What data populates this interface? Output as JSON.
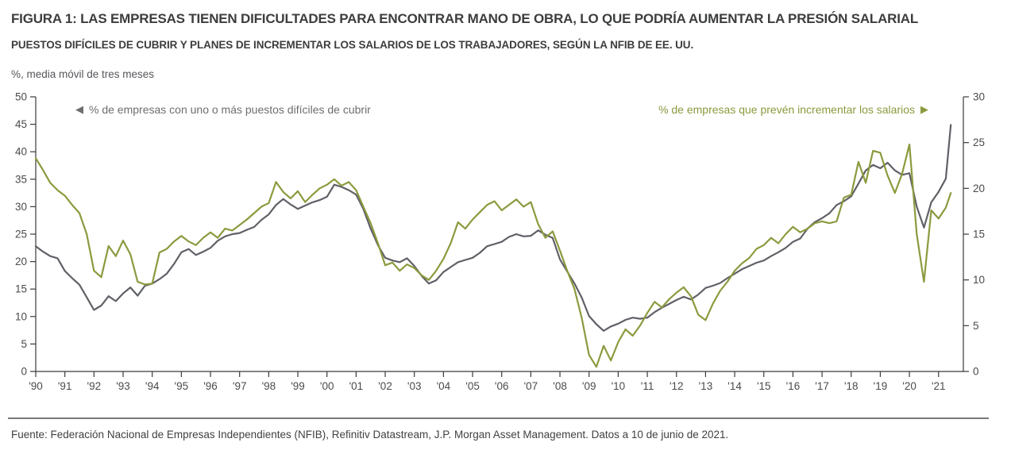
{
  "header": {
    "title": "FIGURA 1: LAS EMPRESAS TIENEN DIFICULTADES PARA ENCONTRAR MANO DE OBRA, LO QUE PODRÍA AUMENTAR LA PRESIÓN SALARIAL",
    "subtitle": "PUESTOS DIFÍCILES DE CUBRIR Y PLANES DE INCREMENTAR LOS SALARIOS DE LOS TRABAJADORES, SEGÚN LA NFIB DE EE. UU.",
    "unit_note": "%, media móvil de tres meses"
  },
  "legend": {
    "left": {
      "arrow": "◀",
      "label": "% de empresas con uno o más puestos difíciles de cubrir",
      "color": "#6d6e71"
    },
    "right": {
      "arrow": "▶",
      "label": "% de empresas que prevén incrementar los salarios",
      "color": "#8c9a3e"
    }
  },
  "footer": {
    "source": "Fuente: Federación Nacional de Empresas Independientes (NFIB), Refinitiv Datastream, J.P. Morgan Asset Management. Datos a 10 de junio de 2021."
  },
  "chart_data": {
    "type": "line",
    "title": "Puestos difíciles de cubrir y planes de incrementar los salarios, según la NFIB de EE. UU.",
    "x_unit": "año (datos mensuales, media móvil de tres meses)",
    "grid": false,
    "x_ticks": [
      1990,
      1991,
      1992,
      1993,
      1994,
      1995,
      1996,
      1997,
      1998,
      1999,
      2000,
      2001,
      2002,
      2003,
      2004,
      2005,
      2006,
      2007,
      2008,
      2009,
      2010,
      2011,
      2012,
      2013,
      2014,
      2015,
      2016,
      2017,
      2018,
      2019,
      2020,
      2021
    ],
    "x_tick_labels": [
      "'90",
      "'91",
      "'92",
      "'93",
      "'94",
      "'95",
      "'96",
      "'97",
      "'98",
      "'99",
      "'00",
      "'01",
      "'02",
      "'03",
      "'04",
      "'05",
      "'06",
      "'07",
      "'08",
      "'09",
      "'10",
      "'11",
      "'12",
      "'13",
      "'14",
      "'15",
      "'16",
      "'17",
      "'18",
      "'19",
      "'20",
      "'21"
    ],
    "y_left": {
      "min": 0,
      "max": 50,
      "ticks": [
        0,
        5,
        10,
        15,
        20,
        25,
        30,
        35,
        40,
        45,
        50
      ]
    },
    "y_right": {
      "min": 0,
      "max": 30,
      "ticks": [
        0,
        5,
        10,
        15,
        20,
        25,
        30
      ]
    },
    "x": [
      1990,
      1990.25,
      1990.5,
      1990.75,
      1991,
      1991.25,
      1991.5,
      1991.75,
      1992,
      1992.25,
      1992.5,
      1992.75,
      1993,
      1993.25,
      1993.5,
      1993.75,
      1994,
      1994.25,
      1994.5,
      1994.75,
      1995,
      1995.25,
      1995.5,
      1995.75,
      1996,
      1996.25,
      1996.5,
      1996.75,
      1997,
      1997.25,
      1997.5,
      1997.75,
      1998,
      1998.25,
      1998.5,
      1998.75,
      1999,
      1999.25,
      1999.5,
      1999.75,
      2000,
      2000.25,
      2000.5,
      2000.75,
      2001,
      2001.25,
      2001.5,
      2001.75,
      2002,
      2002.25,
      2002.5,
      2002.75,
      2003,
      2003.25,
      2003.5,
      2003.75,
      2004,
      2004.25,
      2004.5,
      2004.75,
      2005,
      2005.25,
      2005.5,
      2005.75,
      2006,
      2006.25,
      2006.5,
      2006.75,
      2007,
      2007.25,
      2007.5,
      2007.75,
      2008,
      2008.25,
      2008.5,
      2008.75,
      2009,
      2009.25,
      2009.5,
      2009.75,
      2010,
      2010.25,
      2010.5,
      2010.75,
      2011,
      2011.25,
      2011.5,
      2011.75,
      2012,
      2012.25,
      2012.5,
      2012.75,
      2013,
      2013.25,
      2013.5,
      2013.75,
      2014,
      2014.25,
      2014.5,
      2014.75,
      2015,
      2015.25,
      2015.5,
      2015.75,
      2016,
      2016.25,
      2016.5,
      2016.75,
      2017,
      2017.25,
      2017.5,
      2017.75,
      2018,
      2018.25,
      2018.5,
      2018.75,
      2019,
      2019.25,
      2019.5,
      2019.75,
      2020,
      2020.25,
      2020.5,
      2020.75,
      2021,
      2021.25,
      2021.42
    ],
    "series": [
      {
        "name": "% de empresas con uno o más puestos difíciles de cubrir",
        "axis": "left",
        "color": "#5f6167",
        "values": [
          22.8,
          21.8,
          21.0,
          20.6,
          18.3,
          17.0,
          15.8,
          13.5,
          11.2,
          12.0,
          13.7,
          12.8,
          14.2,
          15.3,
          13.8,
          15.6,
          16.0,
          16.8,
          17.8,
          19.6,
          21.7,
          22.3,
          21.2,
          21.8,
          22.5,
          23.8,
          24.6,
          25.0,
          25.2,
          25.8,
          26.3,
          27.6,
          28.6,
          30.3,
          31.4,
          30.4,
          29.6,
          30.2,
          30.8,
          31.2,
          31.8,
          34.0,
          33.6,
          33.0,
          32.2,
          29.6,
          26.0,
          23.0,
          20.7,
          20.2,
          19.9,
          20.6,
          19.2,
          17.4,
          16.0,
          16.6,
          18.1,
          19.0,
          19.9,
          20.3,
          20.7,
          21.6,
          22.8,
          23.2,
          23.6,
          24.5,
          25.0,
          24.6,
          24.7,
          25.7,
          24.9,
          24.3,
          20.4,
          18.2,
          16.0,
          13.4,
          10.1,
          8.6,
          7.4,
          8.2,
          8.7,
          9.4,
          9.8,
          9.6,
          9.8,
          10.8,
          11.6,
          12.3,
          13.0,
          13.6,
          13.1,
          14.0,
          15.2,
          15.6,
          16.1,
          17.0,
          17.8,
          18.6,
          19.2,
          19.8,
          20.2,
          21.0,
          21.7,
          22.5,
          23.6,
          24.2,
          26.0,
          27.2,
          27.9,
          28.8,
          30.3,
          31.0,
          31.9,
          34.2,
          36.6,
          37.6,
          37.0,
          38.0,
          36.6,
          35.8,
          36.1,
          30.0,
          26.2,
          30.8,
          32.7,
          35.1,
          44.9
        ]
      },
      {
        "name": "% de empresas que prevén incrementar los salarios",
        "axis": "right",
        "color": "#8c9a3e",
        "values": [
          23.3,
          22.0,
          20.6,
          19.8,
          19.2,
          18.2,
          17.3,
          15.0,
          11.0,
          10.3,
          13.7,
          12.6,
          14.3,
          12.8,
          9.8,
          9.5,
          9.6,
          13.0,
          13.4,
          14.2,
          14.8,
          14.2,
          13.8,
          14.6,
          15.2,
          14.6,
          15.6,
          15.4,
          16.0,
          16.6,
          17.3,
          18.0,
          18.4,
          20.7,
          19.6,
          18.9,
          19.7,
          18.5,
          19.3,
          20.0,
          20.4,
          21.0,
          20.3,
          20.7,
          19.8,
          18.0,
          16.2,
          14.0,
          11.6,
          11.9,
          11.0,
          11.7,
          11.3,
          10.5,
          10.0,
          11.0,
          12.3,
          14.0,
          16.3,
          15.6,
          16.6,
          17.4,
          18.2,
          18.6,
          17.6,
          18.2,
          18.8,
          18.0,
          18.5,
          16.1,
          14.6,
          15.3,
          13.2,
          11.0,
          9.0,
          5.8,
          1.8,
          0.5,
          2.8,
          1.2,
          3.2,
          4.6,
          3.9,
          5.0,
          6.4,
          7.6,
          7.0,
          7.9,
          8.6,
          9.2,
          8.2,
          6.2,
          5.6,
          7.4,
          8.8,
          9.8,
          11.0,
          11.8,
          12.4,
          13.4,
          13.8,
          14.6,
          14.0,
          15.0,
          15.8,
          15.2,
          15.6,
          16.2,
          16.4,
          16.2,
          16.4,
          19.0,
          19.3,
          22.9,
          20.6,
          24.1,
          23.9,
          21.4,
          19.5,
          21.6,
          24.8,
          15.0,
          9.8,
          17.6,
          16.7,
          17.9,
          19.5
        ]
      }
    ]
  }
}
